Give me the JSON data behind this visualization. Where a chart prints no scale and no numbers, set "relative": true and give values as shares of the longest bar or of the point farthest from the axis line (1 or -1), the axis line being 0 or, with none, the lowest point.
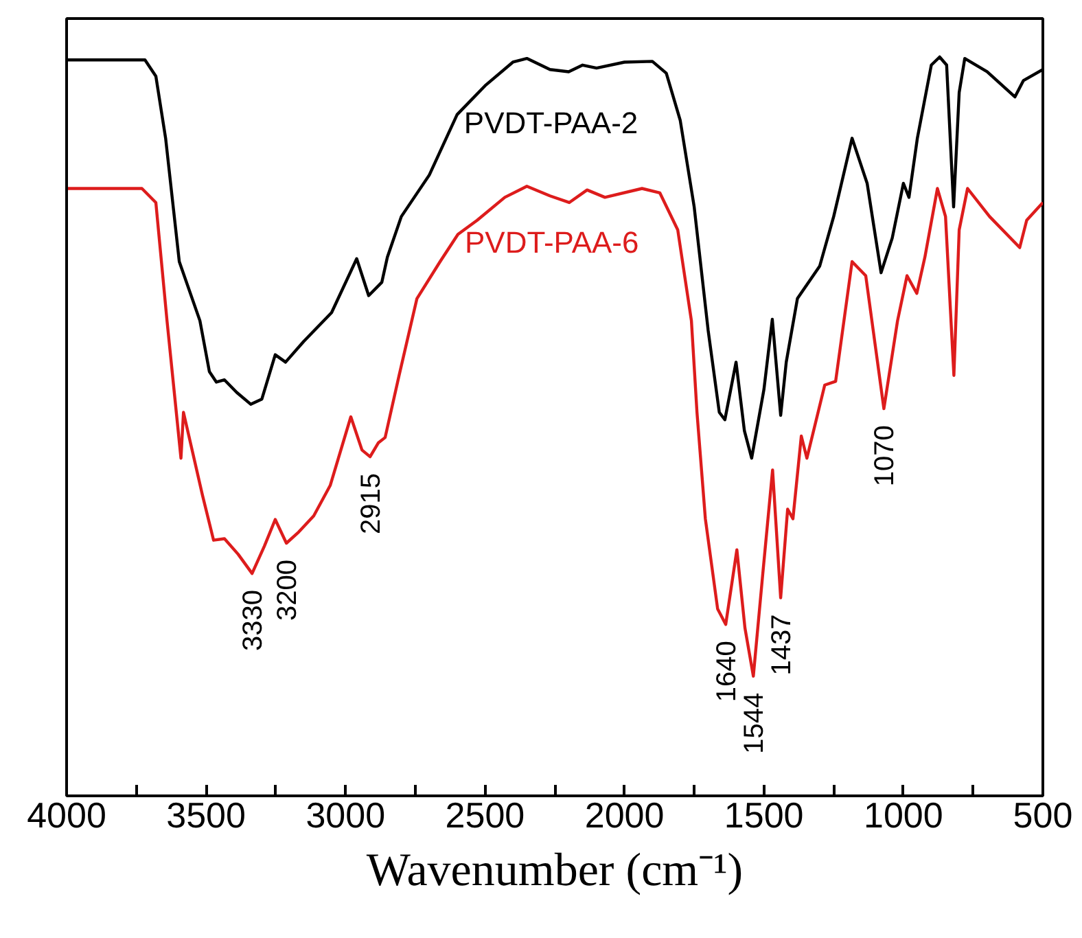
{
  "chart_data": {
    "type": "line",
    "relative": true,
    "xlabel": "Wavenumber (cm⁻¹)",
    "xlim": [
      4000,
      500
    ],
    "xticks": [
      4000,
      {
        "value": 3750,
        "label": null
      },
      3500,
      {
        "value": 3250,
        "label": null
      },
      3000,
      {
        "value": 2750,
        "label": null
      },
      2500,
      {
        "value": 2250,
        "label": null
      },
      2000,
      {
        "value": 1750,
        "label": null
      },
      1500,
      {
        "value": 1250,
        "label": null
      },
      1000,
      {
        "value": 750,
        "label": null
      },
      500
    ],
    "grid": false,
    "tick_labels": "x",
    "line_style": "solid",
    "marker": "none",
    "series": [
      {
        "name": "PVDT-PAA-2",
        "color": "#000000",
        "x": [
          4000,
          3719,
          3680,
          3645,
          3596,
          3522,
          3488,
          3463,
          3434,
          3390,
          3340,
          3300,
          3252,
          3215,
          3150,
          3050,
          2960,
          2917,
          2870,
          2850,
          2800,
          2700,
          2600,
          2500,
          2400,
          2350,
          2267,
          2200,
          2150,
          2100,
          2000,
          1900,
          1850,
          1800,
          1750,
          1700,
          1660,
          1640,
          1600,
          1570,
          1544,
          1500,
          1470,
          1440,
          1420,
          1380,
          1300,
          1250,
          1230,
          1184,
          1130,
          1080,
          1040,
          1000,
          980,
          950,
          900,
          870,
          845,
          820,
          800,
          780,
          700,
          600,
          570,
          500
        ],
        "values": [
          0.996,
          0.996,
          0.974,
          0.89,
          0.723,
          0.643,
          0.574,
          0.56,
          0.563,
          0.546,
          0.53,
          0.537,
          0.597,
          0.587,
          0.615,
          0.654,
          0.727,
          0.677,
          0.695,
          0.729,
          0.784,
          0.84,
          0.922,
          0.961,
          0.993,
          0.998,
          0.983,
          0.98,
          0.989,
          0.985,
          0.993,
          0.994,
          0.978,
          0.914,
          0.797,
          0.63,
          0.519,
          0.509,
          0.587,
          0.494,
          0.457,
          0.55,
          0.645,
          0.515,
          0.587,
          0.673,
          0.717,
          0.784,
          0.816,
          0.89,
          0.829,
          0.708,
          0.755,
          0.829,
          0.81,
          0.89,
          0.989,
          1,
          0.989,
          0.797,
          0.952,
          0.998,
          0.98,
          0.946,
          0.968,
          0.983
        ]
      },
      {
        "name": "PVDT-PAA-6",
        "color": "#dd1c1c",
        "x": [
          4000,
          3730,
          3680,
          3640,
          3590,
          3581,
          3513,
          3473,
          3434,
          3385,
          3335,
          3291,
          3252,
          3212,
          3168,
          3114,
          3055,
          2981,
          2941,
          2912,
          2882,
          2858,
          2808,
          2744,
          2661,
          2597,
          2528,
          2429,
          2350,
          2267,
          2198,
          2134,
          2070,
          1937,
          1873,
          1809,
          1760,
          1740,
          1710,
          1666,
          1637,
          1597,
          1568,
          1538,
          1504,
          1469,
          1440,
          1415,
          1396,
          1366,
          1346,
          1282,
          1243,
          1184,
          1135,
          1070,
          1021,
          987,
          952,
          923,
          878,
          849,
          819,
          800,
          770,
          691,
          583,
          558,
          500
        ],
        "values": [
          0.822,
          0.822,
          0.803,
          0.643,
          0.457,
          0.519,
          0.407,
          0.346,
          0.348,
          0.327,
          0.301,
          0.338,
          0.374,
          0.342,
          0.357,
          0.379,
          0.42,
          0.513,
          0.468,
          0.459,
          0.478,
          0.485,
          0.569,
          0.673,
          0.723,
          0.76,
          0.779,
          0.81,
          0.825,
          0.812,
          0.803,
          0.82,
          0.81,
          0.822,
          0.816,
          0.766,
          0.643,
          0.519,
          0.375,
          0.253,
          0.232,
          0.333,
          0.227,
          0.162,
          0.301,
          0.441,
          0.268,
          0.388,
          0.375,
          0.487,
          0.457,
          0.556,
          0.561,
          0.723,
          0.704,
          0.524,
          0.643,
          0.704,
          0.68,
          0.729,
          0.822,
          0.784,
          0.569,
          0.766,
          0.822,
          0.784,
          0.742,
          0.779,
          0.803
        ]
      }
    ],
    "annotations": [
      {
        "text": "3330",
        "x": 3335,
        "y": 0.301
      },
      {
        "text": "3200",
        "x": 3212,
        "y": 0.342
      },
      {
        "text": "2915",
        "x": 2912,
        "y": 0.459
      },
      {
        "text": "1640",
        "x": 1637,
        "y": 0.232
      },
      {
        "text": "1544",
        "x": 1538,
        "y": 0.162
      },
      {
        "text": "1437",
        "x": 1440,
        "y": 0.268
      },
      {
        "text": "1070",
        "x": 1070,
        "y": 0.524
      }
    ]
  }
}
